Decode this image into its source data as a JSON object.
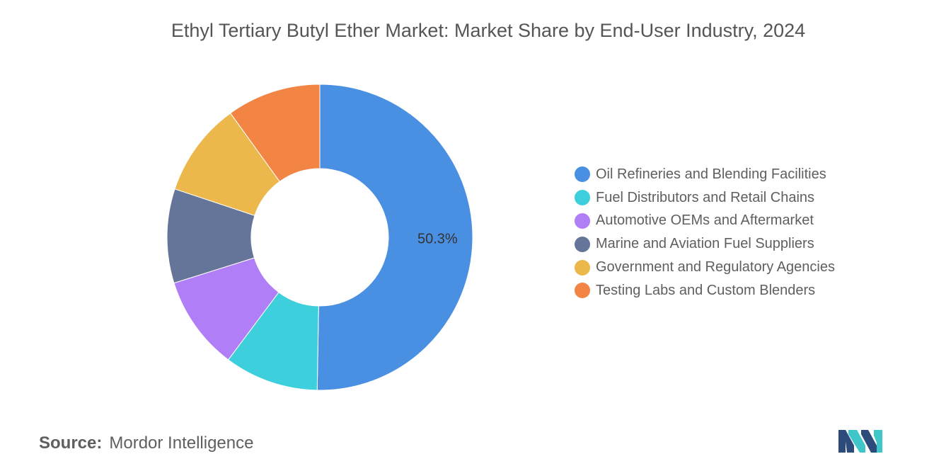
{
  "chart_data": {
    "type": "pie",
    "title": "Ethyl Tertiary Butyl Ether Market: Market Share by End-User Industry, 2024",
    "donut": true,
    "legend_position": "right",
    "slices": [
      {
        "label": "Oil Refineries and Blending Facilities",
        "value": 50.3,
        "color": "#4a90e2",
        "data_label": "50.3%"
      },
      {
        "label": "Fuel Distributors and Retail Chains",
        "value": 9.95,
        "color": "#3ecfdc"
      },
      {
        "label": "Automotive OEMs and Aftermarket",
        "value": 9.95,
        "color": "#b07ef7"
      },
      {
        "label": "Marine and Aviation Fuel Suppliers",
        "value": 9.95,
        "color": "#647599"
      },
      {
        "label": "Government and Regulatory Agencies",
        "value": 9.95,
        "color": "#ecb74b"
      },
      {
        "label": "Testing Labs and Custom Blenders",
        "value": 9.95,
        "color": "#f28444"
      }
    ]
  },
  "source": {
    "label": "Source:",
    "value": "Mordor Intelligence"
  },
  "logo": {
    "icon": "mordor-intelligence-logo-icon",
    "colors": [
      "#2c4a7a",
      "#3ec6c8"
    ]
  }
}
